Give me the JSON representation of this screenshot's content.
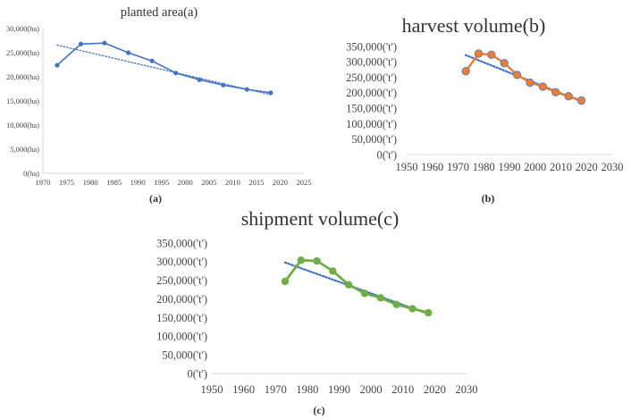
{
  "chart_data": [
    {
      "panel_label": "(a)",
      "type": "line",
      "title": "planted area(a)",
      "xlabel": "",
      "ylabel": "",
      "xlim": [
        1970,
        2025
      ],
      "ylim": [
        0,
        30000
      ],
      "xticks": [
        "1970",
        "1975",
        "1980",
        "1985",
        "1990",
        "1995",
        "2000",
        "2005",
        "2010",
        "2015",
        "2020",
        "2025"
      ],
      "yticks": [
        "0(ha)",
        "5,000(ha)",
        "10,000(ha)",
        "15,000(ha)",
        "20,000(ha)",
        "25,000(ha)",
        "30,000(ha)"
      ],
      "grid": false,
      "series": [
        {
          "name": "planted area",
          "color": "#4472c4",
          "x": [
            1973,
            1978,
            1983,
            1988,
            1993,
            1998,
            2003,
            2008,
            2013,
            2018
          ],
          "values": [
            22400,
            26800,
            27000,
            25000,
            23300,
            20800,
            19400,
            18300,
            17400,
            16700
          ]
        },
        {
          "name": "trend",
          "color": "#4472c4",
          "style": "dotted",
          "x": [
            1973,
            2018
          ],
          "values": [
            26600,
            16300
          ]
        }
      ]
    },
    {
      "panel_label": "(b)",
      "type": "line",
      "title": "harvest volume(b)",
      "xlabel": "",
      "ylabel": "",
      "xlim": [
        1950,
        2030
      ],
      "ylim": [
        0,
        350000
      ],
      "xticks": [
        "1950",
        "1960",
        "1970",
        "1980",
        "1990",
        "2000",
        "2010",
        "2020",
        "2030"
      ],
      "yticks": [
        "0('t')",
        "50,000('t')",
        "100,000('t')",
        "150,000('t')",
        "200,000('t')",
        "250,000('t')",
        "300,000('t')",
        "350,000('t')"
      ],
      "grid": false,
      "series": [
        {
          "name": "harvest volume",
          "color": "#ed7d31",
          "marker_edge": "#5b7fc2",
          "x": [
            1973,
            1978,
            1983,
            1988,
            1993,
            1998,
            2003,
            2008,
            2013,
            2018
          ],
          "values": [
            270000,
            327000,
            323000,
            296000,
            258000,
            233000,
            220000,
            202000,
            189000,
            175000
          ]
        },
        {
          "name": "trend",
          "color": "#4472c4",
          "style": "dotted",
          "x": [
            1973,
            2018
          ],
          "values": [
            322000,
            172000
          ]
        }
      ]
    },
    {
      "panel_label": "(c)",
      "type": "line",
      "title": "shipment volume(c)",
      "xlabel": "",
      "ylabel": "",
      "xlim": [
        1950,
        2030
      ],
      "ylim": [
        0,
        350000
      ],
      "xticks": [
        "1950",
        "1960",
        "1970",
        "1980",
        "1990",
        "2000",
        "2010",
        "2020",
        "2030"
      ],
      "yticks": [
        "0('t')",
        "50,000('t')",
        "100,000('t')",
        "150,000('t')",
        "200,000('t')",
        "250,000('t')",
        "300,000('t')",
        "350,000('t')"
      ],
      "grid": false,
      "series": [
        {
          "name": "shipment volume",
          "color": "#70ad47",
          "x": [
            1973,
            1978,
            1983,
            1988,
            1993,
            1998,
            2003,
            2008,
            2013,
            2018
          ],
          "values": [
            247000,
            304000,
            302000,
            275000,
            238000,
            215000,
            203000,
            185000,
            174000,
            163000
          ]
        },
        {
          "name": "trend",
          "color": "#4472c4",
          "style": "dotted",
          "x": [
            1973,
            2018
          ],
          "values": [
            298000,
            160000
          ]
        }
      ]
    }
  ]
}
